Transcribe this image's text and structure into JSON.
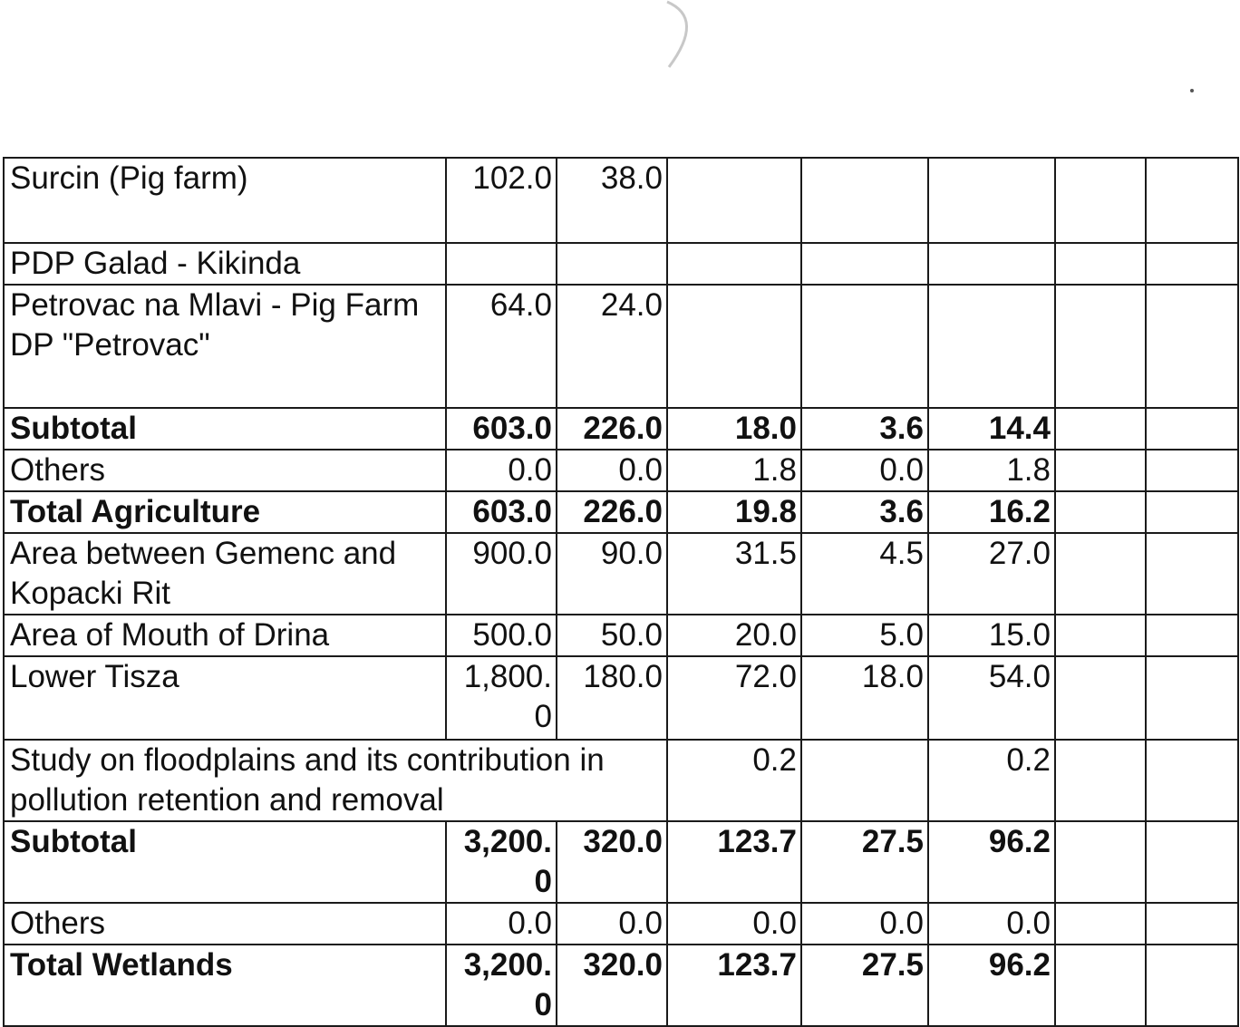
{
  "table": {
    "rows": [
      {
        "name": "Surcin (Pig farm)",
        "cells": [
          "102.0",
          "38.0",
          "",
          "",
          "",
          "",
          ""
        ],
        "bold": false
      },
      {
        "name": "PDP Galad - Kikinda",
        "cells": [
          "",
          "",
          "",
          "",
          "",
          "",
          ""
        ],
        "bold": false
      },
      {
        "name": "Petrovac na Mlavi - Pig Farm DP \"Petrovac\"",
        "cells": [
          "64.0",
          "24.0",
          "",
          "",
          "",
          "",
          ""
        ],
        "bold": false
      },
      {
        "name": "Subtotal",
        "cells": [
          "603.0",
          "226.0",
          "18.0",
          "3.6",
          "14.4",
          "",
          ""
        ],
        "bold": true
      },
      {
        "name": "Others",
        "cells": [
          "0.0",
          "0.0",
          "1.8",
          "0.0",
          "1.8",
          "",
          ""
        ],
        "bold": false
      },
      {
        "name": "Total Agriculture",
        "cells": [
          "603.0",
          "226.0",
          "19.8",
          "3.6",
          "16.2",
          "",
          ""
        ],
        "bold": true
      },
      {
        "name": "Area between Gemenc and Kopacki Rit",
        "cells": [
          "900.0",
          "90.0",
          "31.5",
          "4.5",
          "27.0",
          "",
          ""
        ],
        "bold": false
      },
      {
        "name": "Area of Mouth of Drina",
        "cells": [
          "500.0",
          "50.0",
          "20.0",
          "5.0",
          "15.0",
          "",
          ""
        ],
        "bold": false
      },
      {
        "name": "Lower Tisza",
        "cells": [
          "1,800.\n0",
          "180.0",
          "72.0",
          "18.0",
          "54.0",
          "",
          ""
        ],
        "bold": false
      },
      {
        "name": "Study on floodplains and its contribution in pollution retention and removal",
        "cells": [
          "0.2",
          "",
          "0.2",
          "",
          ""
        ],
        "bold": false,
        "span": true
      },
      {
        "name": "Subtotal",
        "cells": [
          "3,200.\n0",
          "320.0",
          "123.7",
          "27.5",
          "96.2",
          "",
          ""
        ],
        "bold": true
      },
      {
        "name": "Others",
        "cells": [
          "0.0",
          "0.0",
          "0.0",
          "0.0",
          "0.0",
          "",
          ""
        ],
        "bold": false
      },
      {
        "name": "Total Wetlands",
        "cells": [
          "3,200.\n0",
          "320.0",
          "123.7",
          "27.5",
          "96.2",
          "",
          ""
        ],
        "bold": true
      }
    ]
  }
}
